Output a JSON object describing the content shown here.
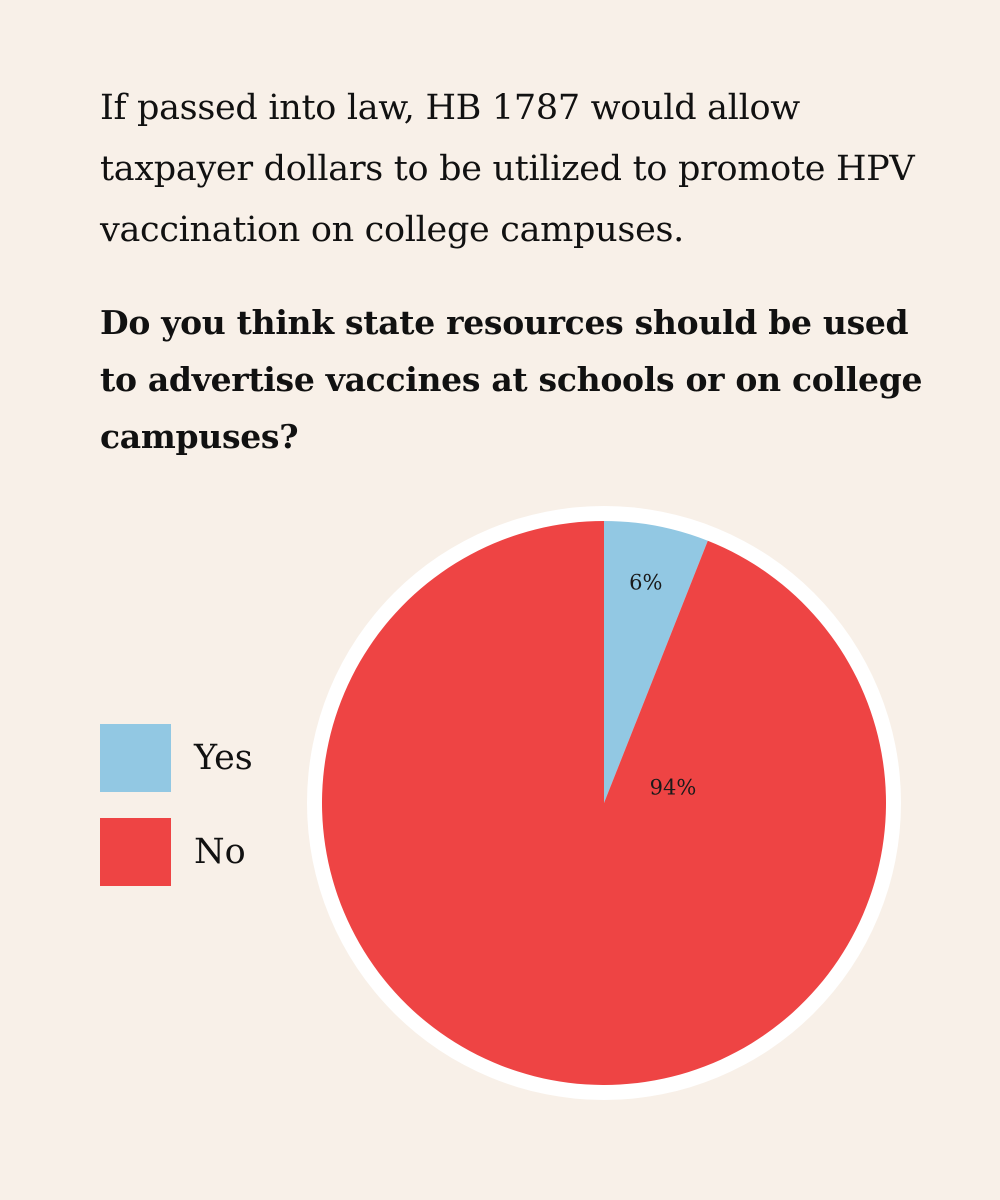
{
  "intro_text": "If passed into law, HB 1787 would allow taxpayer dollars to be utilized to promote HPV vaccination on college campuses.",
  "question_text": "Do you think state resources should be used to advertise vaccines at schools or on college campuses?",
  "colors": {
    "background": "#f8f0e8",
    "yes": "#92c8e3",
    "no": "#ee4444",
    "outline": "#ffffff"
  },
  "chart_data": {
    "type": "pie",
    "title": "Do you think state resources should be used to advertise vaccines at schools or on college campuses?",
    "legend_position": "left",
    "slices": [
      {
        "label": "Yes",
        "value": 6,
        "display": "6%",
        "color": "#92c8e3"
      },
      {
        "label": "No",
        "value": 94,
        "display": "94%",
        "color": "#ee4444"
      }
    ]
  }
}
